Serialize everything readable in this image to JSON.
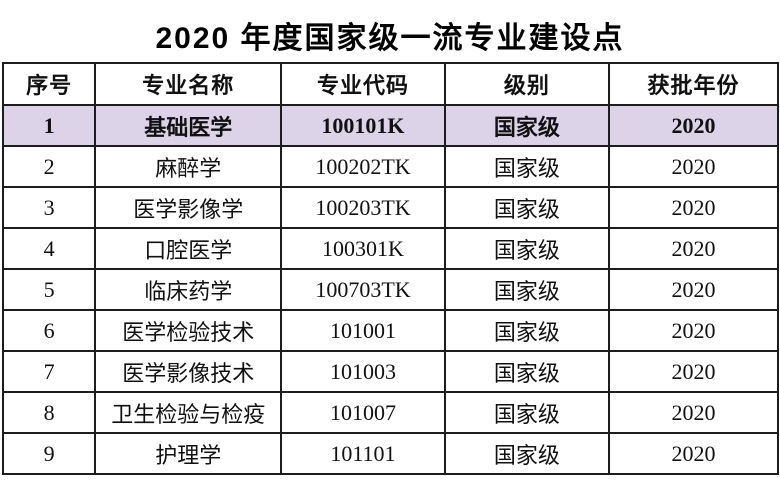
{
  "title": "2020 年度国家级一流专业建设点",
  "table": {
    "columns": [
      {
        "key": "index",
        "label": "序号"
      },
      {
        "key": "name",
        "label": "专业名称"
      },
      {
        "key": "code",
        "label": "专业代码"
      },
      {
        "key": "level",
        "label": "级别"
      },
      {
        "key": "year",
        "label": "获批年份"
      }
    ],
    "rows": [
      {
        "index": "1",
        "name": "基础医学",
        "code": "100101K",
        "level": "国家级",
        "year": "2020",
        "highlighted": true
      },
      {
        "index": "2",
        "name": "麻醉学",
        "code": "100202TK",
        "level": "国家级",
        "year": "2020",
        "highlighted": false
      },
      {
        "index": "3",
        "name": "医学影像学",
        "code": "100203TK",
        "level": "国家级",
        "year": "2020",
        "highlighted": false
      },
      {
        "index": "4",
        "name": "口腔医学",
        "code": "100301K",
        "level": "国家级",
        "year": "2020",
        "highlighted": false
      },
      {
        "index": "5",
        "name": "临床药学",
        "code": "100703TK",
        "level": "国家级",
        "year": "2020",
        "highlighted": false
      },
      {
        "index": "6",
        "name": "医学检验技术",
        "code": "101001",
        "level": "国家级",
        "year": "2020",
        "highlighted": false
      },
      {
        "index": "7",
        "name": "医学影像技术",
        "code": "101003",
        "level": "国家级",
        "year": "2020",
        "highlighted": false
      },
      {
        "index": "8",
        "name": "卫生检验与检疫",
        "code": "101007",
        "level": "国家级",
        "year": "2020",
        "highlighted": false
      },
      {
        "index": "9",
        "name": "护理学",
        "code": "101101",
        "level": "国家级",
        "year": "2020",
        "highlighted": false
      }
    ]
  },
  "colors": {
    "highlight_row_bg": "#ddd3e8",
    "border": "#1c1c1c",
    "text": "#111111",
    "background": "#ffffff"
  }
}
